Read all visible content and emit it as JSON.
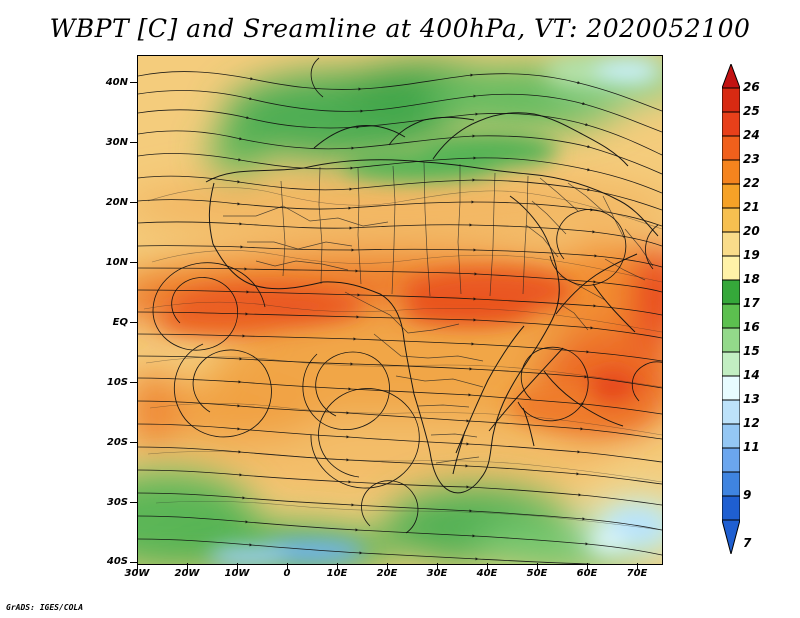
{
  "title": "WBPT [C] and Sreamline at 400hPa, VT: 2020052100",
  "footer": "GrADS: IGES/COLA",
  "map": {
    "longitude_ticks": [
      "30W",
      "20W",
      "10W",
      "0",
      "10E",
      "20E",
      "30E",
      "40E",
      "50E",
      "60E",
      "70E"
    ],
    "latitude_ticks": [
      "40N",
      "30N",
      "20N",
      "10N",
      "EQ",
      "10S",
      "20S",
      "30S",
      "40S"
    ],
    "extent": {
      "lon": [
        -30,
        75
      ],
      "lat": [
        -40,
        45
      ]
    }
  },
  "colorbar": {
    "levels": [
      "26",
      "25",
      "24",
      "23",
      "22",
      "21",
      "20",
      "19",
      "18",
      "17",
      "16",
      "15",
      "14",
      "13",
      "12",
      "11",
      "9",
      "7"
    ],
    "colors": [
      "#c21212",
      "#d82a12",
      "#e8401a",
      "#f0601c",
      "#f5841e",
      "#f6a227",
      "#f7c050",
      "#f9dc8a",
      "#fff2a8",
      "#35a83a",
      "#5cc04f",
      "#93d98a",
      "#c2eec2",
      "#e8fcff",
      "#bde2fa",
      "#94c7f4",
      "#6ba6ee",
      "#3f84e0",
      "#1f5fd1"
    ]
  }
}
